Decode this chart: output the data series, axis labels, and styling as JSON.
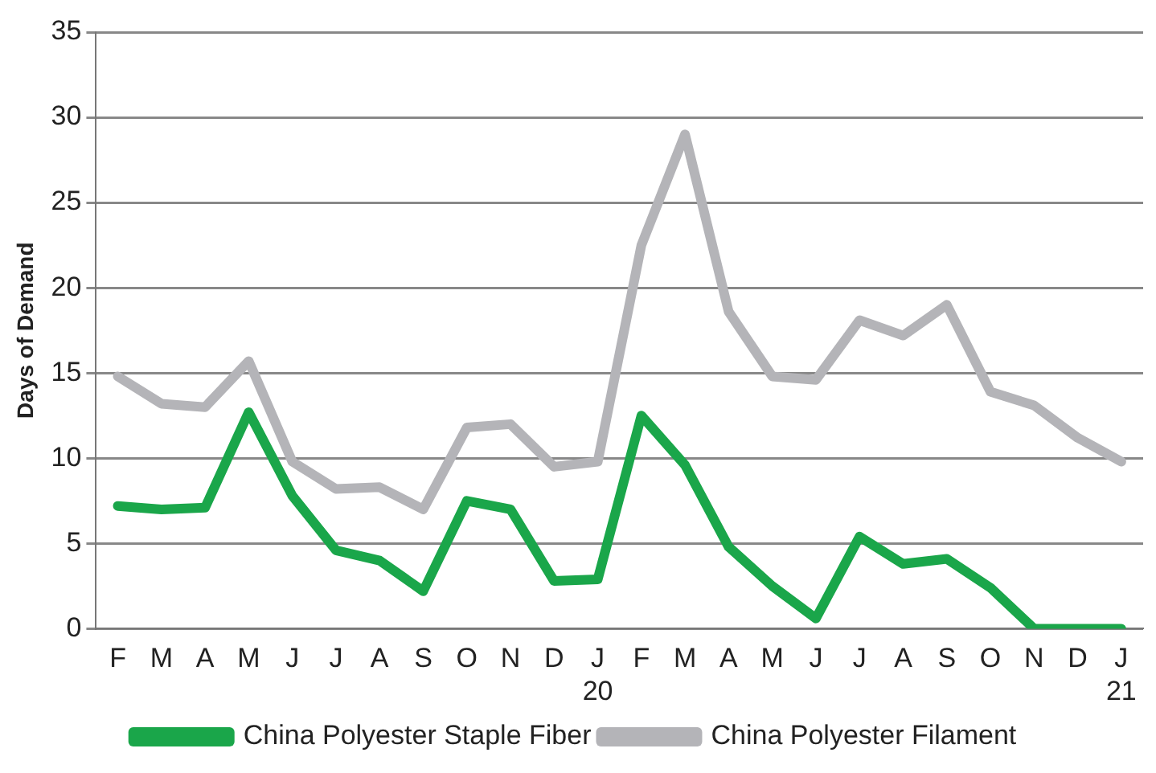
{
  "chart_data": {
    "type": "line",
    "ylabel": "Days of Demand",
    "categories": [
      "F",
      "M",
      "A",
      "M",
      "J",
      "J",
      "A",
      "S",
      "O",
      "N",
      "D",
      "J\n20",
      "F",
      "M",
      "A",
      "M",
      "J",
      "J",
      "A",
      "S",
      "O",
      "N",
      "D",
      "J\n21"
    ],
    "series": [
      {
        "name": "China Polyester Staple Fiber",
        "color": "#1aa64a",
        "values": [
          7.2,
          7.0,
          7.1,
          12.7,
          7.8,
          4.6,
          4.0,
          2.2,
          7.5,
          7.0,
          2.8,
          2.9,
          12.5,
          9.6,
          4.8,
          2.5,
          0.6,
          5.4,
          3.8,
          4.1,
          2.4,
          0,
          0,
          0
        ]
      },
      {
        "name": "China Polyester Filament",
        "color": "#b4b4b8",
        "values": [
          14.8,
          13.2,
          13.0,
          15.7,
          9.8,
          8.2,
          8.3,
          7.0,
          11.8,
          12.0,
          9.5,
          9.8,
          22.5,
          29.0,
          18.6,
          14.8,
          14.6,
          18.1,
          17.2,
          19.0,
          13.9,
          13.1,
          11.2,
          9.8
        ]
      }
    ],
    "ylim": [
      0,
      35
    ],
    "yticks": [
      0,
      5,
      10,
      15,
      20,
      25,
      30,
      35
    ],
    "grid": "y",
    "legend": "bottom",
    "marker": "none",
    "line_style": "solid"
  }
}
